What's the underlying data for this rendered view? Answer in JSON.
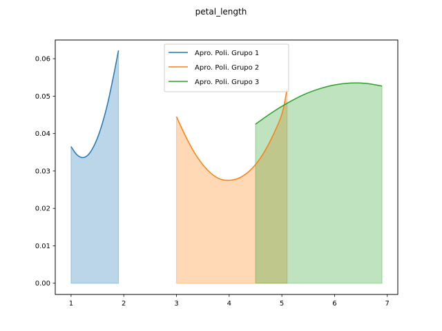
{
  "chart_data": {
    "type": "area",
    "title": "petal_length",
    "xlabel": "",
    "ylabel": "",
    "xlim": [
      0.7,
      7.2
    ],
    "ylim": [
      -0.003,
      0.065
    ],
    "x_ticks": [
      1,
      2,
      3,
      4,
      5,
      6,
      7
    ],
    "y_ticks": [
      0.0,
      0.01,
      0.02,
      0.03,
      0.04,
      0.05,
      0.06
    ],
    "y_tick_format": 2,
    "grid": false,
    "legend_position": "top-center",
    "series": [
      {
        "name": "Apro. Poli. Grupo 1",
        "color": "#1f77b4",
        "x": [
          1.0,
          1.1,
          1.2,
          1.3,
          1.4,
          1.5,
          1.6,
          1.7,
          1.8,
          1.9
        ],
        "values": [
          0.0365,
          0.0345,
          0.0336,
          0.034,
          0.0358,
          0.0388,
          0.043,
          0.0484,
          0.055,
          0.0622
        ]
      },
      {
        "name": "Apro. Poli. Grupo 2",
        "color": "#ff7f0e",
        "x": [
          3.0,
          3.2,
          3.4,
          3.6,
          3.8,
          4.0,
          4.2,
          4.4,
          4.6,
          4.8,
          5.0,
          5.1
        ],
        "values": [
          0.0445,
          0.0385,
          0.0336,
          0.0301,
          0.028,
          0.0275,
          0.0282,
          0.0302,
          0.0336,
          0.0386,
          0.0452,
          0.052
        ]
      },
      {
        "name": "Apro. Poli. Grupo 3",
        "color": "#2ca02c",
        "x": [
          4.5,
          4.8,
          5.1,
          5.4,
          5.7,
          6.0,
          6.3,
          6.6,
          6.9
        ],
        "values": [
          0.0425,
          0.0455,
          0.0481,
          0.0503,
          0.0519,
          0.053,
          0.0535,
          0.0534,
          0.0527
        ]
      }
    ]
  }
}
